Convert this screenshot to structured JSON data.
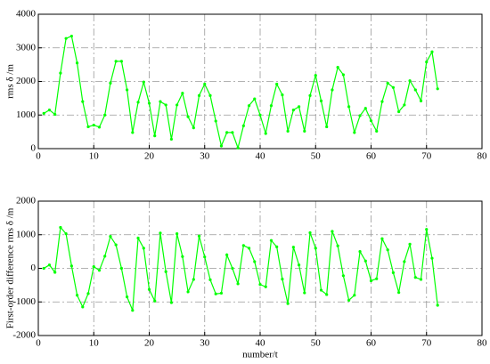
{
  "chart_data": [
    {
      "type": "line",
      "ylabel": "rms δ /m",
      "color": "#00ff00",
      "grid": true,
      "x": [
        1,
        2,
        3,
        4,
        5,
        6,
        7,
        8,
        9,
        10,
        11,
        12,
        13,
        14,
        15,
        16,
        17,
        18,
        19,
        20,
        21,
        22,
        23,
        24,
        25,
        26,
        27,
        28,
        29,
        30,
        31,
        32,
        33,
        34,
        35,
        36,
        37,
        38,
        39,
        40,
        41,
        42,
        43,
        44,
        45,
        46,
        47,
        48,
        49,
        50,
        51,
        52,
        53,
        54,
        55,
        56,
        57,
        58,
        59,
        60,
        61,
        62,
        63,
        64,
        65,
        66,
        67,
        68,
        69,
        70,
        71,
        72
      ],
      "values": [
        1050,
        1150,
        1020,
        2250,
        3280,
        3350,
        2550,
        1400,
        650,
        700,
        640,
        1000,
        1950,
        2600,
        2600,
        1750,
        480,
        1380,
        1980,
        1350,
        380,
        1400,
        1300,
        280,
        1300,
        1650,
        950,
        620,
        1580,
        1920,
        1580,
        820,
        80,
        480,
        480,
        20,
        680,
        1280,
        1480,
        1000,
        450,
        1280,
        1920,
        1600,
        520,
        1150,
        1250,
        520,
        1580,
        2180,
        1420,
        650,
        1750,
        2420,
        2200,
        1250,
        480,
        980,
        1200,
        830,
        520,
        1400,
        1950,
        1820,
        1100,
        1300,
        2020,
        1750,
        1420,
        2580,
        2880,
        1780
      ],
      "xlim": [
        0,
        80
      ],
      "xticks": [
        0,
        10,
        20,
        30,
        40,
        50,
        60,
        70,
        80
      ],
      "ylim": [
        0,
        4000
      ],
      "yticks": [
        0,
        1000,
        2000,
        3000,
        4000
      ]
    },
    {
      "type": "line",
      "ylabel": "First-order difference rms δ /m",
      "xlabel": "number/t",
      "color": "#00ff00",
      "grid": true,
      "x": [
        1,
        2,
        3,
        4,
        5,
        6,
        7,
        8,
        9,
        10,
        11,
        12,
        13,
        14,
        15,
        16,
        17,
        18,
        19,
        20,
        21,
        22,
        23,
        24,
        25,
        26,
        27,
        28,
        29,
        30,
        31,
        32,
        33,
        34,
        35,
        36,
        37,
        38,
        39,
        40,
        41,
        42,
        43,
        44,
        45,
        46,
        47,
        48,
        49,
        50,
        51,
        52,
        53,
        54,
        55,
        56,
        57,
        58,
        59,
        60,
        61,
        62,
        63,
        64,
        65,
        66,
        67,
        68,
        69,
        70,
        71,
        72
      ],
      "values": [
        0,
        100,
        -120,
        1220,
        1030,
        70,
        -800,
        -1150,
        -750,
        50,
        -60,
        360,
        950,
        700,
        0,
        -850,
        -1250,
        900,
        600,
        -630,
        -970,
        1050,
        -100,
        -1020,
        1030,
        350,
        -700,
        -330,
        960,
        340,
        -340,
        -760,
        -740,
        400,
        0,
        -460,
        680,
        600,
        200,
        -480,
        -550,
        830,
        640,
        -320,
        -1050,
        630,
        100,
        -730,
        1060,
        600,
        -650,
        -780,
        1100,
        670,
        -220,
        -950,
        -800,
        500,
        220,
        -370,
        -310,
        880,
        550,
        -130,
        -720,
        200,
        720,
        -270,
        -330,
        1160,
        300,
        -1100
      ],
      "xlim": [
        0,
        80
      ],
      "xticks": [
        0,
        10,
        20,
        30,
        40,
        50,
        60,
        70,
        80
      ],
      "ylim": [
        -2000,
        2000
      ],
      "yticks": [
        -2000,
        -1000,
        0,
        1000,
        2000
      ]
    }
  ]
}
